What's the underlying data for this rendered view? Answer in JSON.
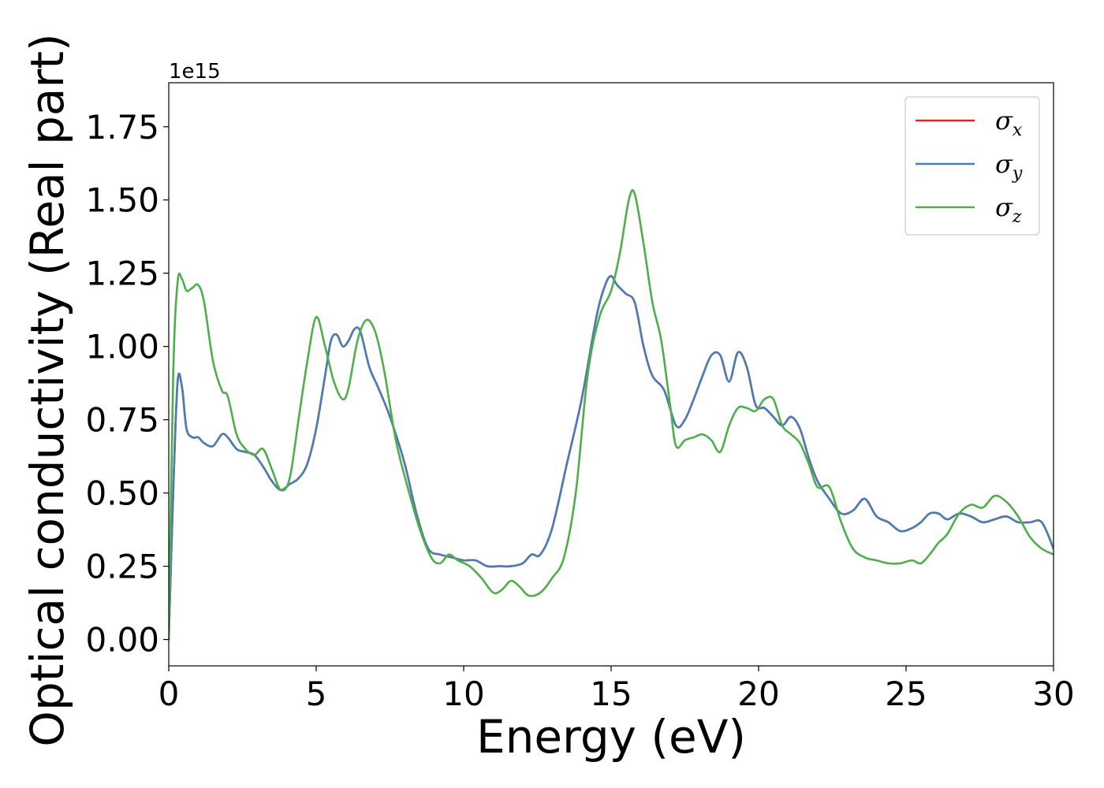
{
  "chart_data": {
    "type": "line",
    "xlabel": "Energy (eV)",
    "ylabel": "Optical conductivity (Real part)",
    "y_offset_label": "1e15",
    "xlim": [
      0,
      30
    ],
    "ylim": [
      -0.09,
      1.9
    ],
    "xticks": [
      0,
      5,
      10,
      15,
      20,
      25,
      30
    ],
    "xtick_labels": [
      "0",
      "5",
      "10",
      "15",
      "20",
      "25",
      "30"
    ],
    "yticks": [
      0.0,
      0.25,
      0.5,
      0.75,
      1.0,
      1.25,
      1.5,
      1.75
    ],
    "ytick_labels": [
      "0.00",
      "0.25",
      "0.50",
      "0.75",
      "1.00",
      "1.25",
      "1.50",
      "1.75"
    ],
    "grid": false,
    "legend_position": "top-right",
    "series": [
      {
        "name": "σx",
        "base": "σ",
        "sub": "x",
        "color": "#d62728",
        "x": [
          0,
          0.15,
          0.3,
          0.45,
          0.6,
          0.8,
          1.0,
          1.2,
          1.5,
          1.8,
          2.0,
          2.3,
          2.6,
          2.9,
          3.2,
          3.5,
          3.8,
          4.1,
          4.4,
          4.7,
          5.0,
          5.3,
          5.5,
          5.7,
          5.9,
          6.1,
          6.3,
          6.5,
          6.8,
          7.1,
          7.5,
          8.0,
          8.4,
          8.8,
          9.2,
          9.6,
          10.0,
          10.4,
          10.8,
          11.2,
          11.6,
          12.0,
          12.3,
          12.6,
          13.0,
          13.5,
          14.0,
          14.5,
          14.8,
          15.0,
          15.2,
          15.5,
          15.8,
          16.1,
          16.4,
          16.8,
          17.2,
          17.5,
          17.8,
          18.1,
          18.4,
          18.7,
          19.0,
          19.3,
          19.6,
          19.9,
          20.2,
          20.5,
          20.8,
          21.1,
          21.4,
          21.7,
          22.0,
          22.4,
          22.8,
          23.2,
          23.6,
          24.0,
          24.4,
          24.8,
          25.2,
          25.5,
          25.8,
          26.1,
          26.4,
          26.8,
          27.2,
          27.6,
          28.0,
          28.4,
          28.8,
          29.2,
          29.6,
          30.0
        ],
        "values": [
          0.0,
          0.5,
          0.88,
          0.86,
          0.72,
          0.69,
          0.69,
          0.67,
          0.66,
          0.7,
          0.69,
          0.65,
          0.64,
          0.63,
          0.59,
          0.54,
          0.51,
          0.53,
          0.55,
          0.6,
          0.72,
          0.9,
          1.02,
          1.04,
          1.0,
          1.02,
          1.06,
          1.05,
          0.93,
          0.86,
          0.76,
          0.6,
          0.43,
          0.31,
          0.29,
          0.28,
          0.27,
          0.27,
          0.25,
          0.25,
          0.25,
          0.26,
          0.29,
          0.29,
          0.38,
          0.6,
          0.82,
          1.1,
          1.21,
          1.24,
          1.21,
          1.18,
          1.15,
          1.0,
          0.9,
          0.85,
          0.73,
          0.75,
          0.82,
          0.9,
          0.97,
          0.97,
          0.88,
          0.98,
          0.93,
          0.8,
          0.79,
          0.76,
          0.73,
          0.76,
          0.72,
          0.62,
          0.54,
          0.48,
          0.43,
          0.44,
          0.48,
          0.42,
          0.4,
          0.37,
          0.38,
          0.4,
          0.43,
          0.43,
          0.41,
          0.43,
          0.42,
          0.4,
          0.41,
          0.42,
          0.4,
          0.4,
          0.4,
          0.31
        ]
      },
      {
        "name": "σy",
        "base": "σ",
        "sub": "y",
        "color": "#4a7db5",
        "x": [
          0,
          0.15,
          0.3,
          0.45,
          0.6,
          0.8,
          1.0,
          1.2,
          1.5,
          1.8,
          2.0,
          2.3,
          2.6,
          2.9,
          3.2,
          3.5,
          3.8,
          4.1,
          4.4,
          4.7,
          5.0,
          5.3,
          5.5,
          5.7,
          5.9,
          6.1,
          6.3,
          6.5,
          6.8,
          7.1,
          7.5,
          8.0,
          8.4,
          8.8,
          9.2,
          9.6,
          10.0,
          10.4,
          10.8,
          11.2,
          11.6,
          12.0,
          12.3,
          12.6,
          13.0,
          13.5,
          14.0,
          14.5,
          14.8,
          15.0,
          15.2,
          15.5,
          15.8,
          16.1,
          16.4,
          16.8,
          17.2,
          17.5,
          17.8,
          18.1,
          18.4,
          18.7,
          19.0,
          19.3,
          19.6,
          19.9,
          20.2,
          20.5,
          20.8,
          21.1,
          21.4,
          21.7,
          22.0,
          22.4,
          22.8,
          23.2,
          23.6,
          24.0,
          24.4,
          24.8,
          25.2,
          25.5,
          25.8,
          26.1,
          26.4,
          26.8,
          27.2,
          27.6,
          28.0,
          28.4,
          28.8,
          29.2,
          29.6,
          30.0
        ],
        "values": [
          0.0,
          0.5,
          0.88,
          0.86,
          0.72,
          0.69,
          0.69,
          0.67,
          0.66,
          0.7,
          0.69,
          0.65,
          0.64,
          0.63,
          0.59,
          0.54,
          0.51,
          0.53,
          0.55,
          0.6,
          0.72,
          0.9,
          1.02,
          1.04,
          1.0,
          1.02,
          1.06,
          1.05,
          0.93,
          0.86,
          0.76,
          0.6,
          0.43,
          0.31,
          0.29,
          0.28,
          0.27,
          0.27,
          0.25,
          0.25,
          0.25,
          0.26,
          0.29,
          0.29,
          0.38,
          0.6,
          0.82,
          1.1,
          1.21,
          1.24,
          1.21,
          1.18,
          1.15,
          1.0,
          0.9,
          0.85,
          0.73,
          0.75,
          0.82,
          0.9,
          0.97,
          0.97,
          0.88,
          0.98,
          0.93,
          0.8,
          0.79,
          0.76,
          0.73,
          0.76,
          0.72,
          0.62,
          0.54,
          0.48,
          0.43,
          0.44,
          0.48,
          0.42,
          0.4,
          0.37,
          0.38,
          0.4,
          0.43,
          0.43,
          0.41,
          0.43,
          0.42,
          0.4,
          0.41,
          0.42,
          0.4,
          0.4,
          0.4,
          0.31
        ]
      },
      {
        "name": "σz",
        "base": "σ",
        "sub": "z",
        "color": "#4daf4a",
        "x": [
          0,
          0.15,
          0.3,
          0.45,
          0.6,
          0.8,
          1.0,
          1.2,
          1.5,
          1.8,
          2.0,
          2.3,
          2.6,
          2.9,
          3.2,
          3.5,
          3.8,
          4.1,
          4.4,
          4.7,
          5.0,
          5.3,
          5.6,
          5.9,
          6.1,
          6.4,
          6.7,
          7.0,
          7.3,
          7.7,
          8.1,
          8.5,
          8.9,
          9.2,
          9.5,
          9.8,
          10.2,
          10.6,
          11.0,
          11.3,
          11.6,
          11.9,
          12.2,
          12.6,
          13.0,
          13.4,
          13.8,
          14.2,
          14.6,
          15.0,
          15.3,
          15.6,
          15.8,
          16.1,
          16.4,
          16.7,
          17.0,
          17.2,
          17.5,
          17.8,
          18.1,
          18.4,
          18.7,
          19.0,
          19.3,
          19.6,
          19.9,
          20.2,
          20.5,
          20.8,
          21.1,
          21.4,
          21.7,
          22.0,
          22.4,
          22.8,
          23.2,
          23.6,
          24.0,
          24.4,
          24.8,
          25.2,
          25.5,
          25.8,
          26.1,
          26.4,
          26.8,
          27.2,
          27.6,
          28.0,
          28.4,
          28.8,
          29.2,
          29.6,
          30.0
        ],
        "values": [
          0.0,
          0.9,
          1.22,
          1.23,
          1.19,
          1.2,
          1.21,
          1.15,
          0.95,
          0.85,
          0.83,
          0.7,
          0.65,
          0.63,
          0.65,
          0.58,
          0.51,
          0.55,
          0.75,
          0.95,
          1.1,
          1.0,
          0.88,
          0.82,
          0.86,
          1.02,
          1.09,
          1.05,
          0.92,
          0.68,
          0.52,
          0.38,
          0.28,
          0.26,
          0.29,
          0.27,
          0.25,
          0.21,
          0.16,
          0.17,
          0.2,
          0.18,
          0.15,
          0.16,
          0.21,
          0.28,
          0.5,
          0.9,
          1.1,
          1.19,
          1.32,
          1.5,
          1.52,
          1.35,
          1.15,
          1.02,
          0.8,
          0.66,
          0.68,
          0.69,
          0.7,
          0.68,
          0.64,
          0.73,
          0.79,
          0.79,
          0.78,
          0.82,
          0.82,
          0.73,
          0.7,
          0.67,
          0.6,
          0.52,
          0.52,
          0.4,
          0.31,
          0.28,
          0.27,
          0.26,
          0.26,
          0.27,
          0.26,
          0.29,
          0.33,
          0.36,
          0.43,
          0.46,
          0.45,
          0.49,
          0.47,
          0.42,
          0.35,
          0.31,
          0.29
        ]
      }
    ]
  }
}
